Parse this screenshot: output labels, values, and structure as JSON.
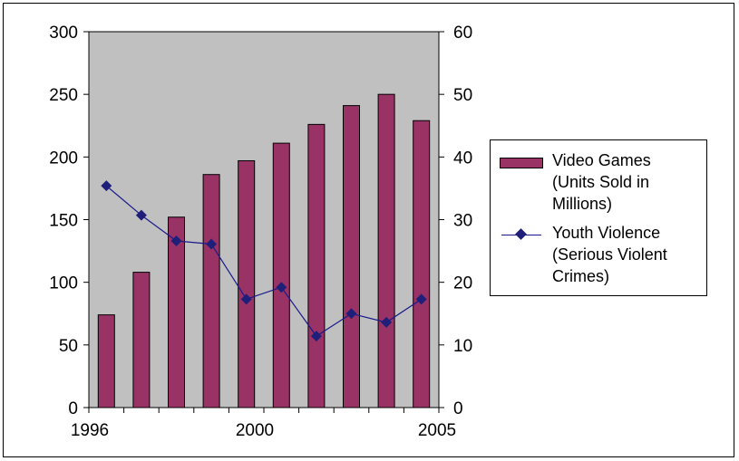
{
  "chart_data": {
    "type": "bar+line",
    "x_axis": {
      "ticks": [
        "1996",
        "2000",
        "2005"
      ]
    },
    "y_left": {
      "min": 0,
      "max": 300,
      "step": 50,
      "ticks": [
        "0",
        "50",
        "100",
        "150",
        "200",
        "250",
        "300"
      ]
    },
    "y_right": {
      "min": 0,
      "max": 60,
      "step": 10,
      "ticks": [
        "0",
        "10",
        "20",
        "30",
        "40",
        "50",
        "60"
      ]
    },
    "categories_count": 10,
    "series": [
      {
        "name": "Video Games (Units Sold in Millions)",
        "kind": "bar",
        "axis": "left",
        "color": "#993366",
        "values": [
          74,
          108,
          152,
          186,
          197,
          211,
          226,
          241,
          250,
          229
        ]
      },
      {
        "name": "Youth Violence (Serious Violent Crimes)",
        "kind": "line",
        "axis": "right",
        "color": "#1f1f7a",
        "values": [
          35.4,
          30.7,
          26.6,
          26.1,
          17.3,
          19.2,
          11.4,
          15.0,
          13.6,
          17.3
        ]
      }
    ],
    "plot_background": "#c0c0c0",
    "grid": false,
    "legend_placement": "right"
  },
  "legend": {
    "item1": "Video Games\n(Units Sold in\nMillions)",
    "item2": "Youth Violence\n(Serious Violent\nCrimes)"
  }
}
